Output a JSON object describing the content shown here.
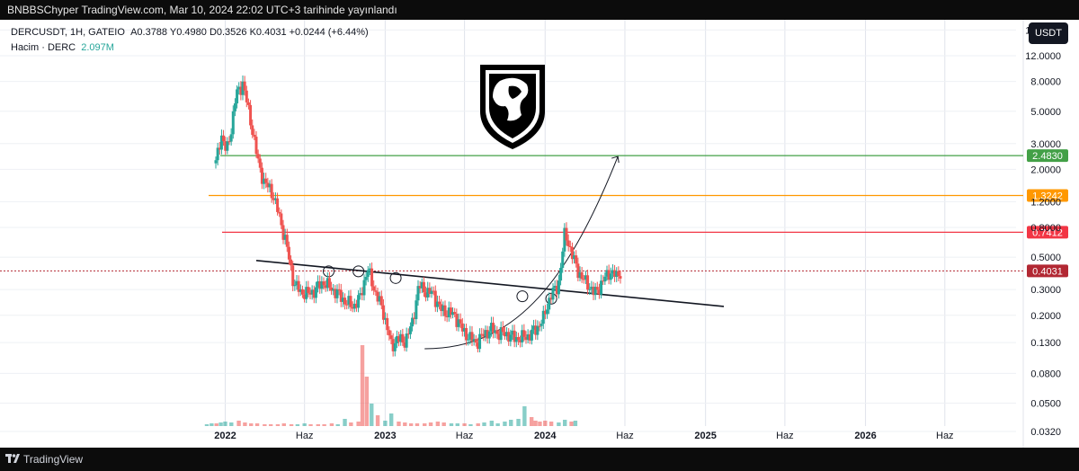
{
  "header": {
    "published": "BNBBSChyper TradingView.com, Mar 10, 2024 22:02 UTC+3 tarihinde yayınlandı"
  },
  "legend": {
    "symbol_line": "DERCUSDT, 1H, GATEIO",
    "ohlc": "A0.3788  Y0.4980  D0.3526  K0.4031  +0.0244 (+6.44%)",
    "volume_label": "Hacim · DERC",
    "volume_value": "2.097M"
  },
  "unit_button": "USDT",
  "footer": {
    "brand": "TradingView"
  },
  "colors": {
    "up": "#26a69a",
    "down": "#ef5350",
    "green_line": "#43a047",
    "orange_line": "#ff9800",
    "red_line": "#f23645",
    "current": "#b22833"
  },
  "chart_data": {
    "type": "candlestick",
    "y_scale": "log",
    "y_ticks": [
      "18.0000",
      "12.0000",
      "8.0000",
      "5.0000",
      "3.0000",
      "2.0000",
      "1.2000",
      "0.8000",
      "0.5000",
      "0.3000",
      "0.2000",
      "0.1300",
      "0.0800",
      "0.0500",
      "0.0320"
    ],
    "x_ticks": [
      "2022",
      "Haz",
      "2023",
      "Haz",
      "2024",
      "Haz",
      "2025",
      "Haz",
      "2026",
      "Haz"
    ],
    "price_series": {
      "x": [
        "2021-11-20",
        "2021-12-01",
        "2021-12-12",
        "2021-12-22",
        "2022-01-01",
        "2022-01-15",
        "2022-02-01",
        "2022-02-15",
        "2022-03-01",
        "2022-03-15",
        "2022-04-01",
        "2022-04-15",
        "2022-05-01",
        "2022-05-15",
        "2022-06-01",
        "2022-06-15",
        "2022-07-01",
        "2022-07-15",
        "2022-08-01",
        "2022-08-15",
        "2022-09-01",
        "2022-09-15",
        "2022-10-01",
        "2022-10-15",
        "2022-11-01",
        "2022-11-10",
        "2022-11-20",
        "2022-12-01",
        "2022-12-15",
        "2023-01-01",
        "2023-01-15",
        "2023-02-01",
        "2023-02-15",
        "2023-03-01",
        "2023-03-15",
        "2023-04-01",
        "2023-04-15",
        "2023-05-01",
        "2023-05-15",
        "2023-06-01",
        "2023-06-15",
        "2023-07-01",
        "2023-07-15",
        "2023-08-01",
        "2023-08-15",
        "2023-09-01",
        "2023-09-15",
        "2023-10-01",
        "2023-10-15",
        "2023-11-01",
        "2023-11-15",
        "2023-12-01",
        "2023-12-10",
        "2023-12-20",
        "2024-01-01",
        "2024-01-15",
        "2024-02-01",
        "2024-02-15",
        "2024-03-01",
        "2024-03-10"
      ],
      "close": [
        2.2,
        3.5,
        2.6,
        3.8,
        6.5,
        7.8,
        4.2,
        2.3,
        1.6,
        1.45,
        0.95,
        0.62,
        0.33,
        0.29,
        0.28,
        0.3,
        0.34,
        0.31,
        0.28,
        0.25,
        0.23,
        0.26,
        0.42,
        0.3,
        0.22,
        0.17,
        0.12,
        0.14,
        0.13,
        0.17,
        0.32,
        0.29,
        0.28,
        0.22,
        0.21,
        0.2,
        0.16,
        0.14,
        0.13,
        0.15,
        0.16,
        0.15,
        0.15,
        0.14,
        0.14,
        0.145,
        0.16,
        0.19,
        0.27,
        0.32,
        0.75,
        0.5,
        0.42,
        0.36,
        0.33,
        0.28,
        0.34,
        0.4,
        0.37,
        0.4031
      ]
    },
    "volume_bars": [
      0.02,
      0.03,
      0.03,
      0.04,
      0.05,
      0.04,
      0.06,
      0.04,
      0.03,
      0.03,
      0.02,
      0.02,
      0.02,
      0.03,
      0.02,
      0.02,
      0.03,
      0.02,
      0.02,
      0.02,
      0.03,
      0.02,
      0.08,
      0.04,
      0.05,
      0.9,
      0.55,
      0.25,
      0.12,
      0.06,
      0.14,
      0.05,
      0.04,
      0.03,
      0.03,
      0.03,
      0.04,
      0.05,
      0.04,
      0.03,
      0.03,
      0.03,
      0.02,
      0.03,
      0.04,
      0.06,
      0.03,
      0.05,
      0.07,
      0.08,
      0.22,
      0.1,
      0.06,
      0.05,
      0.06,
      0.05,
      0.04,
      0.07,
      0.05,
      0.06
    ],
    "horizontal_levels": [
      {
        "value": 2.483,
        "label": "2.4830"
      },
      {
        "value": 1.3242,
        "label": "1.3242"
      },
      {
        "value": 0.7412,
        "label": "0.7412"
      }
    ],
    "current_price": {
      "value": 0.4031,
      "label": "0.4031"
    }
  }
}
